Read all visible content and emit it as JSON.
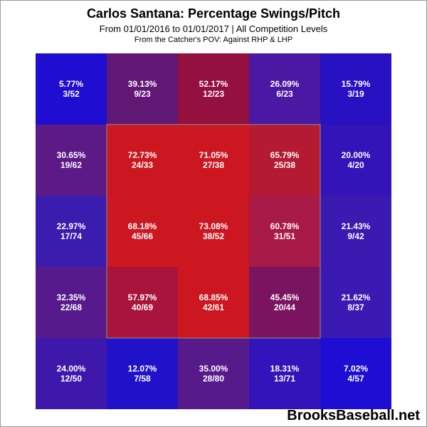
{
  "header": {
    "title": "Carlos Santana: Percentage Swings/Pitch",
    "subtitle": "From 01/01/2016 to 01/01/2017 | All Competition Levels",
    "subsubtitle": "From the Catcher's POV:  Against RHP & LHP"
  },
  "watermark": "BrooksBaseball.net",
  "chart_data": {
    "type": "heatmap",
    "title": "Carlos Santana: Percentage Swings/Pitch",
    "rows": 5,
    "cols": 5,
    "strike_zone": "inner 3x3",
    "cells": [
      [
        {
          "pct": "5.77%",
          "frac": "3/52",
          "value": 5.77,
          "color": "#1f0ed2"
        },
        {
          "pct": "39.13%",
          "frac": "9/23",
          "value": 39.13,
          "color": "#611774"
        },
        {
          "pct": "52.17%",
          "frac": "12/23",
          "value": 52.17,
          "color": "#94103e"
        },
        {
          "pct": "26.09%",
          "frac": "6/23",
          "value": 26.09,
          "color": "#4a18a2"
        },
        {
          "pct": "15.79%",
          "frac": "3/19",
          "value": 15.79,
          "color": "#2711c2"
        }
      ],
      [
        {
          "pct": "30.65%",
          "frac": "19/62",
          "value": 30.65,
          "color": "#5c1a86"
        },
        {
          "pct": "72.73%",
          "frac": "24/33",
          "value": 72.73,
          "color": "#cc1620"
        },
        {
          "pct": "71.05%",
          "frac": "27/38",
          "value": 71.05,
          "color": "#cc1620"
        },
        {
          "pct": "65.79%",
          "frac": "25/38",
          "value": 65.79,
          "color": "#b41a32"
        },
        {
          "pct": "20.00%",
          "frac": "4/20",
          "value": 20.0,
          "color": "#3214b8"
        }
      ],
      [
        {
          "pct": "22.97%",
          "frac": "17/74",
          "value": 22.97,
          "color": "#3a1cae"
        },
        {
          "pct": "68.18%",
          "frac": "45/66",
          "value": 68.18,
          "color": "#cc1620"
        },
        {
          "pct": "73.08%",
          "frac": "38/52",
          "value": 73.08,
          "color": "#cc1620"
        },
        {
          "pct": "60.78%",
          "frac": "31/51",
          "value": 60.78,
          "color": "#a81a48"
        },
        {
          "pct": "21.43%",
          "frac": "9/42",
          "value": 21.43,
          "color": "#3a1ab0"
        }
      ],
      [
        {
          "pct": "32.35%",
          "frac": "22/68",
          "value": 32.35,
          "color": "#561a8c"
        },
        {
          "pct": "57.97%",
          "frac": "40/69",
          "value": 57.97,
          "color": "#a8143c"
        },
        {
          "pct": "68.85%",
          "frac": "42/61",
          "value": 68.85,
          "color": "#cc1620"
        },
        {
          "pct": "45.45%",
          "frac": "20/44",
          "value": 45.45,
          "color": "#7a1460"
        },
        {
          "pct": "21.62%",
          "frac": "8/37",
          "value": 21.62,
          "color": "#3a1ab2"
        }
      ],
      [
        {
          "pct": "24.00%",
          "frac": "12/50",
          "value": 24.0,
          "color": "#3e18aa"
        },
        {
          "pct": "12.07%",
          "frac": "7/58",
          "value": 12.07,
          "color": "#2012c8"
        },
        {
          "pct": "35.00%",
          "frac": "28/80",
          "value": 35.0,
          "color": "#561a8a"
        },
        {
          "pct": "18.31%",
          "frac": "13/71",
          "value": 18.31,
          "color": "#3214ba"
        },
        {
          "pct": "7.02%",
          "frac": "4/57",
          "value": 7.02,
          "color": "#1e0ed4"
        }
      ]
    ]
  }
}
